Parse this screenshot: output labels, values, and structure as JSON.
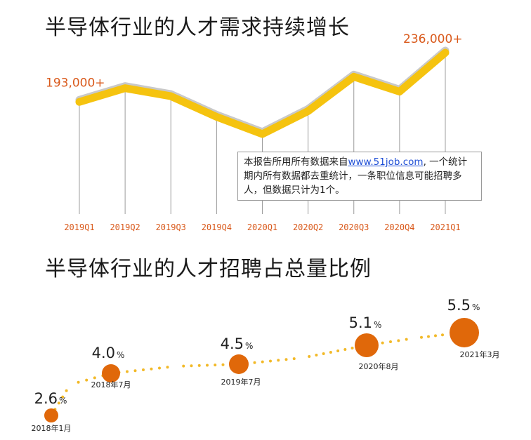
{
  "charts": {
    "top": {
      "title": "半导体行业的人才需求持续增长"
    },
    "bottom": {
      "title": "半导体行业的人才招聘占总量比例"
    }
  },
  "note": {
    "prefix": "本报告所用所有数据来自",
    "link": "www.51job.com",
    "suffix": ", 一个统计期内所有数据都去重统计，一条职位信息可能招聘多人，但数据只计为1个。"
  },
  "colors": {
    "line": "#f5c30f",
    "bubble": "#e0680a",
    "label": "#d9591b",
    "dots": "#f2b928"
  },
  "chart_data": [
    {
      "type": "line",
      "title": "半导体行业的人才需求持续增长",
      "categories": [
        "2019Q1",
        "2019Q2",
        "2019Q3",
        "2019Q4",
        "2020Q1",
        "2020Q2",
        "2020Q3",
        "2020Q4",
        "2021Q1"
      ],
      "series": [
        {
          "values": [
            193000,
            205000,
            198000,
            180000,
            165000,
            185000,
            215000,
            202000,
            236000
          ]
        }
      ],
      "annotations": [
        {
          "category": "2019Q1",
          "text": "193,000+"
        },
        {
          "category": "2021Q1",
          "text": "236,000+"
        }
      ],
      "xlabel": "",
      "ylabel": "",
      "grid": false
    },
    {
      "type": "scatter",
      "title": "半导体行业的人才招聘占总量比例",
      "points": [
        {
          "x": "2018年1月",
          "value": "2.6",
          "unit": "%",
          "y": 2.6
        },
        {
          "x": "2018年7月",
          "value": "4.0",
          "unit": "%",
          "y": 4.0
        },
        {
          "x": "2019年7月",
          "value": "4.5",
          "unit": "%",
          "y": 4.5
        },
        {
          "x": "2020年8月",
          "value": "5.1",
          "unit": "%",
          "y": 5.1
        },
        {
          "x": "2021年3月",
          "value": "5.5",
          "unit": "%",
          "y": 5.5
        }
      ]
    }
  ]
}
